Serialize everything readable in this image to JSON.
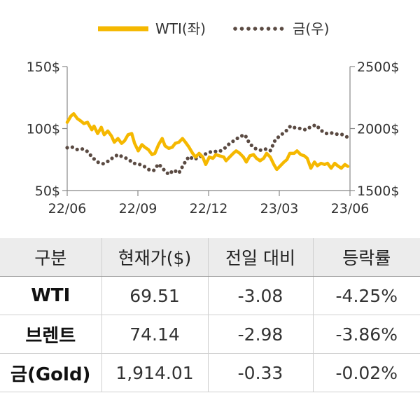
{
  "chart_data": {
    "type": "line",
    "legend_position": "top",
    "x_ticks": [
      "22/06",
      "22/09",
      "22/12",
      "23/03",
      "23/06"
    ],
    "y_left": {
      "ticks": [
        "150$",
        "100$",
        "50$"
      ],
      "range": [
        50,
        150
      ]
    },
    "y_right": {
      "ticks": [
        "2500$",
        "2000$",
        "1500$"
      ],
      "range": [
        1500,
        2500
      ]
    },
    "grid": false,
    "colors": {
      "wti": "#f5b800",
      "gold": "#5a4a42"
    },
    "series": [
      {
        "name": "WTI(좌)",
        "axis": "left",
        "style": "solid",
        "points": [
          [
            "2022-06-01",
            105
          ],
          [
            "2022-06-06",
            110
          ],
          [
            "2022-06-10",
            112
          ],
          [
            "2022-06-15",
            108
          ],
          [
            "2022-06-20",
            106
          ],
          [
            "2022-06-24",
            104
          ],
          [
            "2022-06-29",
            105
          ],
          [
            "2022-07-05",
            99
          ],
          [
            "2022-07-08",
            102
          ],
          [
            "2022-07-13",
            96
          ],
          [
            "2022-07-18",
            101
          ],
          [
            "2022-07-22",
            95
          ],
          [
            "2022-07-27",
            98
          ],
          [
            "2022-08-01",
            94
          ],
          [
            "2022-08-05",
            89
          ],
          [
            "2022-08-10",
            92
          ],
          [
            "2022-08-15",
            88
          ],
          [
            "2022-08-19",
            90
          ],
          [
            "2022-08-24",
            95
          ],
          [
            "2022-08-29",
            96
          ],
          [
            "2022-09-02",
            88
          ],
          [
            "2022-09-07",
            82
          ],
          [
            "2022-09-12",
            87
          ],
          [
            "2022-09-16",
            85
          ],
          [
            "2022-09-21",
            83
          ],
          [
            "2022-09-26",
            79
          ],
          [
            "2022-09-30",
            80
          ],
          [
            "2022-10-05",
            87
          ],
          [
            "2022-10-10",
            92
          ],
          [
            "2022-10-14",
            86
          ],
          [
            "2022-10-19",
            84
          ],
          [
            "2022-10-24",
            85
          ],
          [
            "2022-10-28",
            88
          ],
          [
            "2022-11-02",
            89
          ],
          [
            "2022-11-07",
            92
          ],
          [
            "2022-11-11",
            89
          ],
          [
            "2022-11-16",
            85
          ],
          [
            "2022-11-21",
            80
          ],
          [
            "2022-11-25",
            77
          ],
          [
            "2022-11-30",
            80
          ],
          [
            "2022-12-05",
            77
          ],
          [
            "2022-12-09",
            71
          ],
          [
            "2022-12-14",
            77
          ],
          [
            "2022-12-19",
            76
          ],
          [
            "2022-12-23",
            79
          ],
          [
            "2022-12-28",
            78
          ],
          [
            "2023-01-03",
            77
          ],
          [
            "2023-01-06",
            74
          ],
          [
            "2023-01-11",
            77
          ],
          [
            "2023-01-16",
            80
          ],
          [
            "2023-01-20",
            82
          ],
          [
            "2023-01-25",
            80
          ],
          [
            "2023-01-30",
            77
          ],
          [
            "2023-02-03",
            73
          ],
          [
            "2023-02-08",
            78
          ],
          [
            "2023-02-13",
            79
          ],
          [
            "2023-02-17",
            76
          ],
          [
            "2023-02-22",
            74
          ],
          [
            "2023-02-27",
            76
          ],
          [
            "2023-03-03",
            80
          ],
          [
            "2023-03-08",
            77
          ],
          [
            "2023-03-13",
            71
          ],
          [
            "2023-03-17",
            67
          ],
          [
            "2023-03-22",
            70
          ],
          [
            "2023-03-27",
            73
          ],
          [
            "2023-03-31",
            75
          ],
          [
            "2023-04-04",
            80
          ],
          [
            "2023-04-10",
            80
          ],
          [
            "2023-04-14",
            82
          ],
          [
            "2023-04-19",
            79
          ],
          [
            "2023-04-24",
            78
          ],
          [
            "2023-04-28",
            76
          ],
          [
            "2023-05-03",
            68
          ],
          [
            "2023-05-08",
            73
          ],
          [
            "2023-05-12",
            70
          ],
          [
            "2023-05-17",
            72
          ],
          [
            "2023-05-22",
            71
          ],
          [
            "2023-05-26",
            72
          ],
          [
            "2023-05-31",
            68
          ],
          [
            "2023-06-05",
            72
          ],
          [
            "2023-06-09",
            70
          ],
          [
            "2023-06-14",
            68
          ],
          [
            "2023-06-19",
            71
          ],
          [
            "2023-06-23",
            69.5
          ]
        ]
      },
      {
        "name": "금(우)",
        "axis": "right",
        "style": "dotted",
        "points": [
          [
            "2022-06-01",
            1845
          ],
          [
            "2022-06-08",
            1850
          ],
          [
            "2022-06-15",
            1830
          ],
          [
            "2022-06-22",
            1835
          ],
          [
            "2022-06-29",
            1815
          ],
          [
            "2022-07-06",
            1765
          ],
          [
            "2022-07-13",
            1730
          ],
          [
            "2022-07-20",
            1715
          ],
          [
            "2022-07-27",
            1735
          ],
          [
            "2022-08-03",
            1765
          ],
          [
            "2022-08-10",
            1790
          ],
          [
            "2022-08-17",
            1770
          ],
          [
            "2022-08-24",
            1755
          ],
          [
            "2022-08-31",
            1720
          ],
          [
            "2022-09-07",
            1715
          ],
          [
            "2022-09-14",
            1700
          ],
          [
            "2022-09-21",
            1670
          ],
          [
            "2022-09-28",
            1660
          ],
          [
            "2022-10-05",
            1715
          ],
          [
            "2022-10-12",
            1670
          ],
          [
            "2022-10-19",
            1630
          ],
          [
            "2022-10-26",
            1665
          ],
          [
            "2022-11-02",
            1640
          ],
          [
            "2022-11-09",
            1715
          ],
          [
            "2022-11-16",
            1775
          ],
          [
            "2022-11-23",
            1750
          ],
          [
            "2022-11-30",
            1770
          ],
          [
            "2022-12-07",
            1790
          ],
          [
            "2022-12-14",
            1810
          ],
          [
            "2022-12-21",
            1815
          ],
          [
            "2022-12-28",
            1815
          ],
          [
            "2023-01-04",
            1840
          ],
          [
            "2023-01-11",
            1880
          ],
          [
            "2023-01-18",
            1905
          ],
          [
            "2023-01-25",
            1935
          ],
          [
            "2023-02-01",
            1950
          ],
          [
            "2023-02-08",
            1875
          ],
          [
            "2023-02-15",
            1840
          ],
          [
            "2023-02-22",
            1825
          ],
          [
            "2023-03-01",
            1835
          ],
          [
            "2023-03-08",
            1820
          ],
          [
            "2023-03-15",
            1910
          ],
          [
            "2023-03-22",
            1945
          ],
          [
            "2023-03-29",
            1975
          ],
          [
            "2023-04-05",
            2020
          ],
          [
            "2023-04-12",
            2005
          ],
          [
            "2023-04-19",
            2000
          ],
          [
            "2023-04-26",
            1990
          ],
          [
            "2023-05-03",
            2015
          ],
          [
            "2023-05-10",
            2030
          ],
          [
            "2023-05-17",
            1985
          ],
          [
            "2023-05-24",
            1960
          ],
          [
            "2023-05-31",
            1965
          ],
          [
            "2023-06-07",
            1955
          ],
          [
            "2023-06-14",
            1955
          ],
          [
            "2023-06-21",
            1935
          ],
          [
            "2023-06-26",
            1920
          ]
        ]
      }
    ]
  },
  "table": {
    "headers": [
      "구분",
      "현재가($)",
      "전일 대비",
      "등락률"
    ],
    "rows": [
      [
        "WTI",
        "69.51",
        "-3.08",
        "-4.25%"
      ],
      [
        "브렌트",
        "74.14",
        "-2.98",
        "-3.86%"
      ],
      [
        "금(Gold)",
        "1,914.01",
        "-0.33",
        "-0.02%"
      ]
    ]
  }
}
